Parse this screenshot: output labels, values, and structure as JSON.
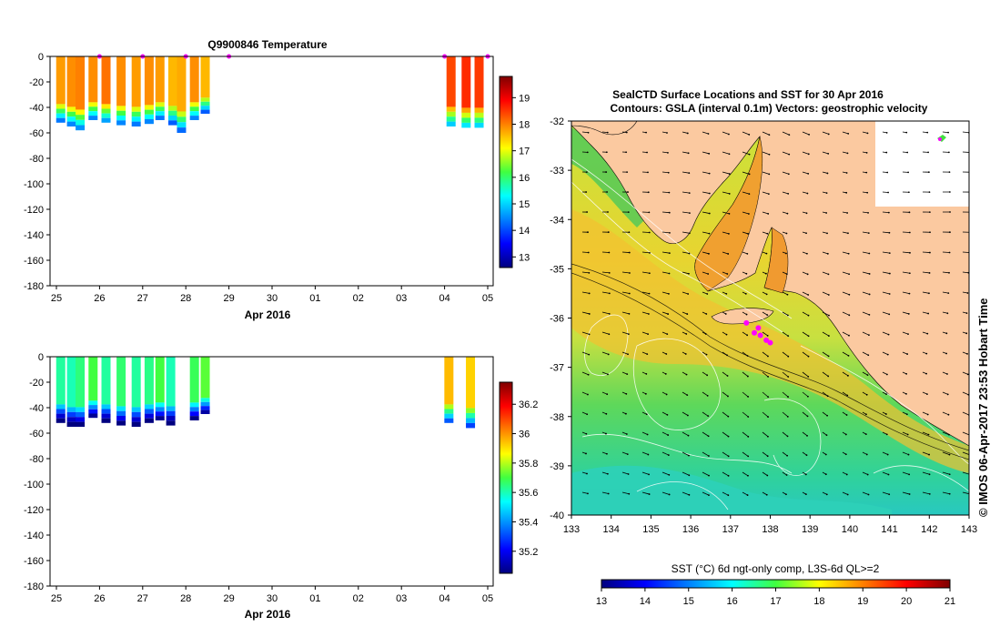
{
  "chart_data": [
    {
      "type": "heatmap",
      "title": "Q9900846  Temperature",
      "xlabel": "Apr 2016",
      "x_ticks": [
        "25",
        "26",
        "27",
        "28",
        "29",
        "30",
        "01",
        "02",
        "03",
        "04",
        "05"
      ],
      "y_ticks": [
        "0",
        "-20",
        "-40",
        "-60",
        "-80",
        "-100",
        "-120",
        "-140",
        "-160",
        "-180"
      ],
      "ylim": [
        -180,
        0
      ],
      "colorbar": {
        "ticks": [
          "13",
          "14",
          "15",
          "16",
          "17",
          "18",
          "19"
        ],
        "range": [
          12.6,
          19.8
        ]
      },
      "profiles": [
        {
          "day": 0.1,
          "depth": -52,
          "surface": 17.8
        },
        {
          "day": 0.35,
          "depth": -55,
          "surface": 17.9
        },
        {
          "day": 0.55,
          "depth": -58,
          "surface": 18.0
        },
        {
          "day": 0.85,
          "depth": -50,
          "surface": 17.9
        },
        {
          "day": 1.15,
          "depth": -52,
          "surface": 18.1
        },
        {
          "day": 1.5,
          "depth": -54,
          "surface": 17.9
        },
        {
          "day": 1.85,
          "depth": -55,
          "surface": 17.8
        },
        {
          "day": 2.15,
          "depth": -53,
          "surface": 17.9
        },
        {
          "day": 2.4,
          "depth": -50,
          "surface": 17.8
        },
        {
          "day": 2.7,
          "depth": -54,
          "surface": 17.6
        },
        {
          "day": 2.9,
          "depth": -60,
          "surface": 17.7
        },
        {
          "day": 3.2,
          "depth": -50,
          "surface": 17.9
        },
        {
          "day": 3.45,
          "depth": -45,
          "surface": 17.6
        },
        {
          "day": 9.15,
          "depth": -55,
          "surface": 18.4
        },
        {
          "day": 9.5,
          "depth": -56,
          "surface": 18.6
        },
        {
          "day": 9.8,
          "depth": -56,
          "surface": 18.5
        }
      ],
      "markers": [
        1.0,
        2.0,
        3.0,
        4.0,
        9.0,
        10.0
      ]
    },
    {
      "type": "heatmap",
      "title": "",
      "xlabel": "Apr 2016",
      "x_ticks": [
        "25",
        "26",
        "27",
        "28",
        "29",
        "30",
        "01",
        "02",
        "03",
        "04",
        "05"
      ],
      "y_ticks": [
        "0",
        "-20",
        "-40",
        "-60",
        "-80",
        "-100",
        "-120",
        "-140",
        "-160",
        "-180"
      ],
      "ylim": [
        -180,
        0
      ],
      "colorbar": {
        "ticks": [
          "35.2",
          "35.4",
          "35.6",
          "35.8",
          "36",
          "36.2"
        ],
        "range": [
          35.05,
          36.35
        ]
      },
      "profiles": [
        {
          "day": 0.1,
          "depth": -52,
          "surface": 35.62
        },
        {
          "day": 0.35,
          "depth": -55,
          "surface": 35.6
        },
        {
          "day": 0.55,
          "depth": -55,
          "surface": 35.65
        },
        {
          "day": 0.85,
          "depth": -48,
          "surface": 35.7
        },
        {
          "day": 1.15,
          "depth": -52,
          "surface": 35.62
        },
        {
          "day": 1.5,
          "depth": -54,
          "surface": 35.66
        },
        {
          "day": 1.85,
          "depth": -55,
          "surface": 35.62
        },
        {
          "day": 2.15,
          "depth": -52,
          "surface": 35.64
        },
        {
          "day": 2.4,
          "depth": -50,
          "surface": 35.7
        },
        {
          "day": 2.65,
          "depth": -54,
          "surface": 35.6
        },
        {
          "day": 3.2,
          "depth": -50,
          "surface": 35.68
        },
        {
          "day": 3.45,
          "depth": -45,
          "surface": 35.72
        },
        {
          "day": 9.1,
          "depth": -52,
          "surface": 35.95
        },
        {
          "day": 9.6,
          "depth": -56,
          "surface": 35.92
        }
      ]
    },
    {
      "type": "heatmap",
      "title": "SealCTD Surface Locations and SST for 30 Apr 2016",
      "subtitle": "Contours: GSLA (interval 0.1m) Vectors: geostrophic velocity",
      "x_ticks": [
        "133",
        "134",
        "135",
        "136",
        "137",
        "138",
        "139",
        "140",
        "141",
        "142",
        "143"
      ],
      "y_ticks": [
        "-32",
        "-33",
        "-34",
        "-35",
        "-36",
        "-37",
        "-38",
        "-39",
        "-40"
      ],
      "xlim": [
        133,
        143
      ],
      "ylim": [
        -40,
        -32
      ],
      "colorbar_label": "SST (°C) 6d ngt-only comp, L3S-6d QL>=2",
      "colorbar_ticks": [
        "13",
        "14",
        "15",
        "16",
        "17",
        "18",
        "19",
        "20",
        "21"
      ],
      "colorbar_range": [
        13,
        21
      ],
      "seal_locations": [
        {
          "lon": 137.4,
          "lat": -36.1
        },
        {
          "lon": 137.6,
          "lat": -36.3
        },
        {
          "lon": 137.75,
          "lat": -36.35
        },
        {
          "lon": 137.9,
          "lat": -36.45
        },
        {
          "lon": 138.0,
          "lat": -36.5
        },
        {
          "lon": 137.7,
          "lat": -36.2
        }
      ],
      "side_label": "© IMOS 06-Apr-2017 23:53 Hobart Time"
    }
  ],
  "colors": {
    "land": "#FBC9A0",
    "seal": "#FF00FF",
    "frame": "#000000"
  }
}
